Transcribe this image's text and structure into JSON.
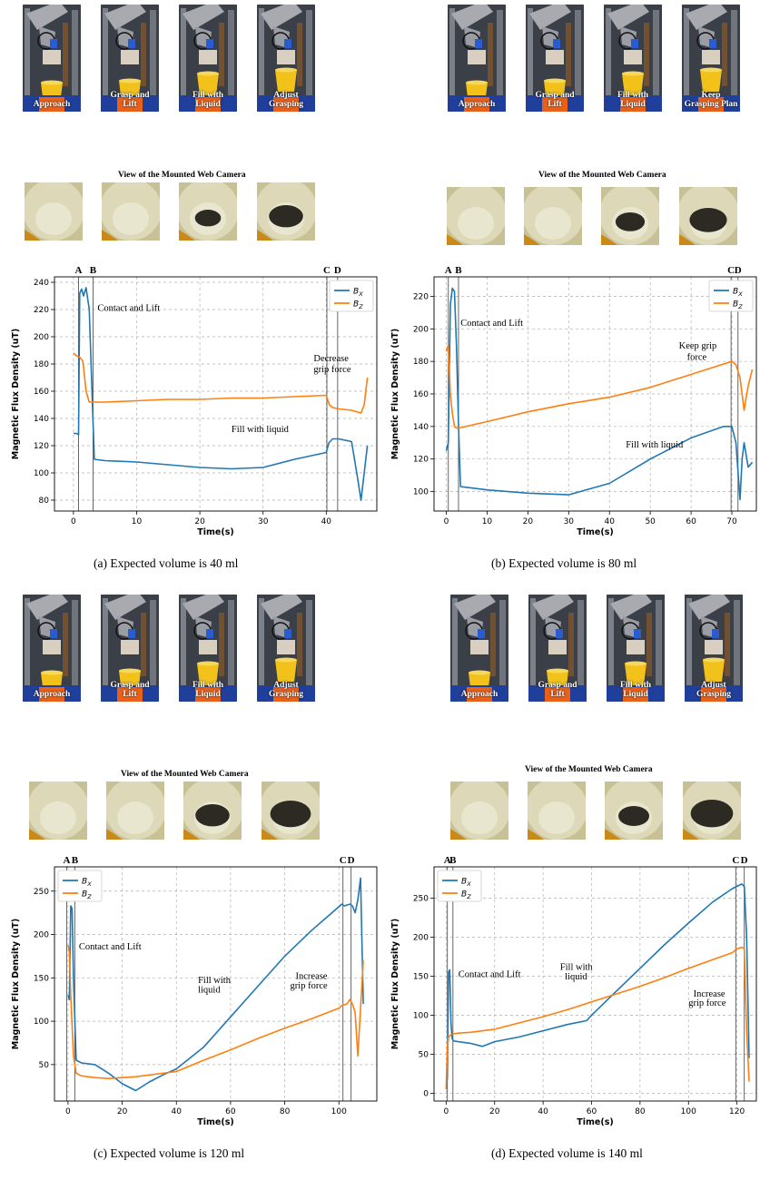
{
  "camera_view_title": "View of the Mounted Web Camera",
  "panels": [
    {
      "caption": "(a) Expected volume is 40 ml",
      "stages": [
        "Approach",
        "Grasp and\nLift",
        "Fill with\nLiquid",
        "Adjust\nGrasping"
      ],
      "liquid": [
        0,
        0,
        0.35,
        0.6
      ]
    },
    {
      "caption": "(b) Expected volume is 80 ml",
      "stages": [
        "Approach",
        "Grasp and\nLift",
        "Fill with\nLiquid",
        "Keep\nGrasping Plan"
      ],
      "liquid": [
        0,
        0,
        0.45,
        0.7
      ]
    },
    {
      "caption": "(c) Expected volume is 120 ml",
      "stages": [
        "Approach",
        "Grasp and\nLift",
        "Fill with\nLiquid",
        "Adjust\nGrasping"
      ],
      "liquid": [
        0,
        0,
        0.6,
        0.8
      ]
    },
    {
      "caption": "(d) Expected volume is 140 ml",
      "stages": [
        "Approach",
        "Grasp and\nLift",
        "Fill with\nLiquid",
        "Adjust\nGrasping"
      ],
      "liquid": [
        0,
        0,
        0.5,
        0.85
      ]
    }
  ],
  "colors": {
    "bx": "#1f77b4",
    "bz": "#ff7f0e",
    "grid": "#b0b0b0"
  },
  "chart_data": [
    {
      "type": "line",
      "xlabel": "Time(s)",
      "ylabel": "Magnetic Flux Density (uT)",
      "xlim": [
        -3,
        48
      ],
      "ylim": [
        72,
        244
      ],
      "xticks": [
        0,
        10,
        20,
        30,
        40
      ],
      "yticks": [
        80,
        100,
        120,
        140,
        160,
        180,
        200,
        220,
        240
      ],
      "legend": "top-right",
      "events": [
        {
          "label": "A",
          "x": 0.8
        },
        {
          "label": "B",
          "x": 3.1
        },
        {
          "label": "C",
          "x": 40.1
        },
        {
          "label": "D",
          "x": 41.8
        }
      ],
      "series": [
        {
          "name": "B_X",
          "x": [
            0,
            0.5,
            0.8,
            1.0,
            1.3,
            1.6,
            2.0,
            2.5,
            3.0,
            3.3,
            5,
            10,
            15,
            20,
            25,
            30,
            35,
            40,
            40.4,
            41,
            42,
            44,
            45,
            45.5,
            46,
            46.5
          ],
          "y": [
            129,
            129,
            128,
            232,
            235,
            230,
            236,
            220,
            150,
            110,
            109,
            108,
            106,
            104,
            103,
            104,
            110,
            115,
            122,
            125,
            125,
            123,
            95,
            80,
            100,
            120
          ]
        },
        {
          "name": "B_Z",
          "x": [
            0,
            0.5,
            1.0,
            1.5,
            2.0,
            2.5,
            3.0,
            5,
            10,
            15,
            20,
            25,
            30,
            35,
            40,
            40.5,
            41,
            42,
            44,
            45.5,
            46,
            46.5
          ],
          "y": [
            188,
            186,
            185,
            182,
            160,
            152,
            152,
            152,
            153,
            154,
            154,
            155,
            155,
            156,
            157,
            150,
            148,
            147,
            146,
            144,
            150,
            170
          ]
        }
      ],
      "annotations": [
        {
          "text": "Contact and Lift",
          "x": 3.8,
          "y": 219
        },
        {
          "text": "Decrease",
          "x": 38,
          "y": 182
        },
        {
          "text": "grip force",
          "x": 38,
          "y": 174
        },
        {
          "text": "Fill with liquid",
          "x": 25,
          "y": 130
        }
      ]
    },
    {
      "type": "line",
      "xlabel": "Time(s)",
      "ylabel": "Magnetic Flux Density (uT)",
      "xlim": [
        -3,
        76
      ],
      "ylim": [
        88,
        232
      ],
      "xticks": [
        0,
        10,
        20,
        30,
        40,
        50,
        60,
        70
      ],
      "yticks": [
        100,
        120,
        140,
        160,
        180,
        200,
        220
      ],
      "legend": "top-right",
      "events": [
        {
          "label": "A",
          "x": 0.5
        },
        {
          "label": "B",
          "x": 3.0
        },
        {
          "label": "C",
          "x": 69.8
        },
        {
          "label": "D",
          "x": 71.5
        }
      ],
      "series": [
        {
          "name": "B_X",
          "x": [
            0,
            0.5,
            1.0,
            1.5,
            2.0,
            2.5,
            3.0,
            3.5,
            10,
            20,
            30,
            40,
            50,
            60,
            68,
            70,
            71,
            72,
            72.5,
            73,
            74,
            75
          ],
          "y": [
            125,
            130,
            215,
            225,
            223,
            190,
            140,
            103,
            101,
            99,
            98,
            105,
            120,
            133,
            140,
            140,
            130,
            95,
            120,
            130,
            115,
            118
          ]
        },
        {
          "name": "B_Z",
          "x": [
            0,
            0.5,
            1.0,
            1.5,
            2.0,
            2.5,
            3.0,
            10,
            20,
            30,
            40,
            50,
            60,
            65,
            70,
            71,
            72,
            73,
            74,
            75
          ],
          "y": [
            186,
            190,
            160,
            148,
            140,
            139,
            139,
            143,
            149,
            154,
            158,
            164,
            172,
            176,
            180,
            178,
            170,
            150,
            165,
            175
          ]
        }
      ],
      "annotations": [
        {
          "text": "Contact and Lift",
          "x": 3.5,
          "y": 202
        },
        {
          "text": "Keep grip",
          "x": 57,
          "y": 188
        },
        {
          "text": "force",
          "x": 59,
          "y": 181
        },
        {
          "text": "Fill with liquid",
          "x": 44,
          "y": 127
        }
      ]
    },
    {
      "type": "line",
      "xlabel": "Time(s)",
      "ylabel": "Magnetic Flux Density (uT)",
      "xlim": [
        -5,
        114
      ],
      "ylim": [
        8,
        278
      ],
      "xticks": [
        0,
        20,
        40,
        60,
        80,
        100
      ],
      "yticks": [
        50,
        100,
        150,
        200,
        250
      ],
      "legend": "top-left",
      "events": [
        {
          "label": "A",
          "x": -0.5
        },
        {
          "label": "B",
          "x": 2.5
        },
        {
          "label": "C",
          "x": 101.5
        },
        {
          "label": "D",
          "x": 104.5
        }
      ],
      "series": [
        {
          "name": "B_X",
          "x": [
            0,
            0.5,
            1.0,
            1.5,
            2.0,
            3.0,
            5,
            10,
            15,
            20,
            25,
            30,
            35,
            40,
            50,
            60,
            70,
            80,
            90,
            100,
            101,
            102,
            104,
            105,
            106,
            107,
            108,
            109
          ],
          "y": [
            130,
            125,
            233,
            230,
            150,
            55,
            52,
            50,
            40,
            28,
            20,
            30,
            38,
            45,
            70,
            105,
            140,
            175,
            205,
            232,
            235,
            233,
            235,
            233,
            225,
            240,
            265,
            120
          ]
        },
        {
          "name": "B_Z",
          "x": [
            0,
            0.5,
            1.0,
            2.0,
            3.0,
            5,
            10,
            15,
            20,
            25,
            30,
            40,
            50,
            60,
            70,
            80,
            90,
            100,
            101,
            103,
            104,
            105,
            106,
            107,
            108,
            109
          ],
          "y": [
            188,
            180,
            130,
            60,
            40,
            37,
            35,
            34,
            35,
            36,
            38,
            42,
            55,
            67,
            80,
            92,
            103,
            115,
            118,
            120,
            125,
            120,
            110,
            60,
            115,
            170
          ]
        }
      ],
      "annotations": [
        {
          "text": "Contact and Lift",
          "x": 4,
          "y": 183
        },
        {
          "text": "Fill with",
          "x": 48,
          "y": 144
        },
        {
          "text": "liquid",
          "x": 48,
          "y": 133
        },
        {
          "text": "Increase",
          "x": 84,
          "y": 149
        },
        {
          "text": "grip force",
          "x": 82,
          "y": 138
        }
      ]
    },
    {
      "type": "line",
      "xlabel": "Time(s)",
      "ylabel": "Magnetic Flux Density (uT)",
      "xlim": [
        -5,
        128
      ],
      "ylim": [
        -10,
        290
      ],
      "xticks": [
        0,
        20,
        40,
        60,
        80,
        100,
        120
      ],
      "yticks": [
        0,
        50,
        100,
        150,
        200,
        250
      ],
      "legend": "top-left",
      "events": [
        {
          "label": "A",
          "x": 0.5
        },
        {
          "label": "B",
          "x": 2.8
        },
        {
          "label": "C",
          "x": 119.5
        },
        {
          "label": "D",
          "x": 123
        }
      ],
      "series": [
        {
          "name": "B_X",
          "x": [
            0,
            0.5,
            1.0,
            1.5,
            2.0,
            2.5,
            3.0,
            5,
            10,
            15,
            20,
            30,
            40,
            50,
            58,
            60,
            70,
            80,
            90,
            100,
            110,
            118,
            120,
            122,
            123,
            124,
            125
          ],
          "y": [
            5,
            20,
            155,
            158,
            90,
            70,
            67,
            66,
            64,
            60,
            66,
            72,
            80,
            88,
            93,
            100,
            130,
            160,
            190,
            218,
            245,
            262,
            265,
            268,
            265,
            200,
            45
          ]
        },
        {
          "name": "B_Z",
          "x": [
            0,
            0.5,
            1.0,
            2.0,
            3.0,
            5,
            10,
            20,
            30,
            40,
            50,
            60,
            70,
            80,
            90,
            100,
            110,
            118,
            120,
            122,
            123,
            124,
            125
          ],
          "y": [
            5,
            60,
            72,
            75,
            76,
            77,
            78,
            82,
            90,
            98,
            107,
            117,
            127,
            137,
            148,
            160,
            171,
            180,
            185,
            187,
            185,
            80,
            15
          ]
        }
      ],
      "annotations": [
        {
          "text": "Contact and Lift",
          "x": 5,
          "y": 149
        },
        {
          "text": "Fill with",
          "x": 47,
          "y": 158
        },
        {
          "text": "liquid",
          "x": 49,
          "y": 146
        },
        {
          "text": "Increase",
          "x": 102,
          "y": 124
        },
        {
          "text": "grip force",
          "x": 100,
          "y": 112
        }
      ]
    }
  ]
}
